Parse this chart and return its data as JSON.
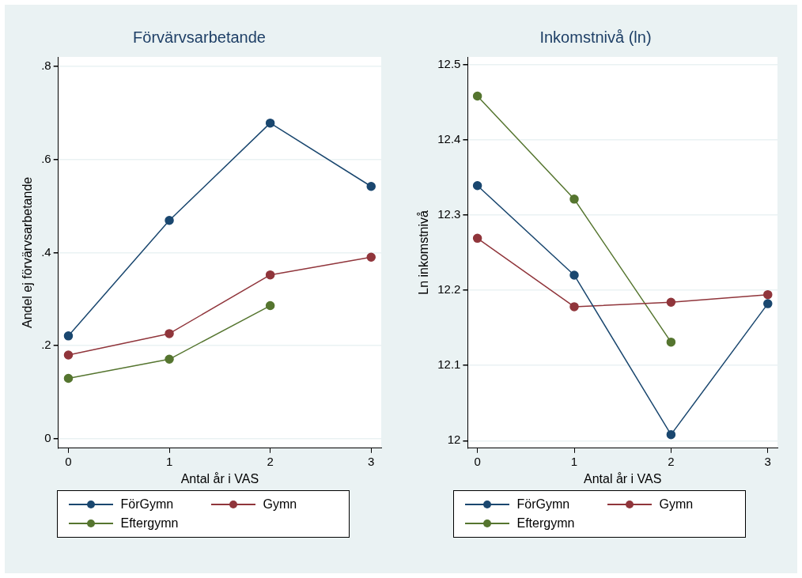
{
  "chart_data": [
    {
      "type": "line",
      "title": "Förvärvsarbetande",
      "xlabel": "Antal år i VAS",
      "ylabel": "Andel ej förvärvsarbetande",
      "x": [
        0,
        1,
        2,
        3
      ],
      "xlim": [
        -0.1,
        3.1
      ],
      "xticks": [
        0,
        1,
        2,
        3
      ],
      "ylim": [
        -0.02,
        0.82
      ],
      "yticks": [
        {
          "value": 0,
          "label": "0"
        },
        {
          "value": 0.2,
          "label": ".2"
        },
        {
          "value": 0.4,
          "label": ".4"
        },
        {
          "value": 0.6,
          "label": ".6"
        },
        {
          "value": 0.8,
          "label": ".8"
        }
      ],
      "grid": "y",
      "legend": "bottom",
      "marker": "circle",
      "series": [
        {
          "name": "FörGymn",
          "color": "#1a476f",
          "values": [
            0.221,
            0.469,
            0.678,
            0.542
          ]
        },
        {
          "name": "Gymn",
          "color": "#90353b",
          "values": [
            0.18,
            0.226,
            0.352,
            0.39
          ]
        },
        {
          "name": "Eftergymn",
          "color": "#55752f",
          "values": [
            0.13,
            0.171,
            0.286,
            null
          ]
        }
      ]
    },
    {
      "type": "line",
      "title": "Inkomstnivå (ln)",
      "xlabel": "Antal år i VAS",
      "ylabel": "Ln inkomstnivå",
      "x": [
        0,
        1,
        2,
        3
      ],
      "xlim": [
        -0.1,
        3.1
      ],
      "xticks": [
        0,
        1,
        2,
        3
      ],
      "ylim": [
        11.99,
        12.51
      ],
      "yticks": [
        12,
        12.1,
        12.2,
        12.3,
        12.4,
        12.5
      ],
      "grid": "y",
      "legend": "bottom",
      "marker": "circle",
      "series": [
        {
          "name": "FörGymn",
          "color": "#1a476f",
          "values": [
            12.339,
            12.22,
            12.008,
            12.182
          ]
        },
        {
          "name": "Gymn",
          "color": "#90353b",
          "values": [
            12.269,
            12.178,
            12.184,
            12.194
          ]
        },
        {
          "name": "Eftergymn",
          "color": "#55752f",
          "values": [
            12.458,
            12.321,
            12.131,
            null
          ]
        }
      ]
    }
  ]
}
